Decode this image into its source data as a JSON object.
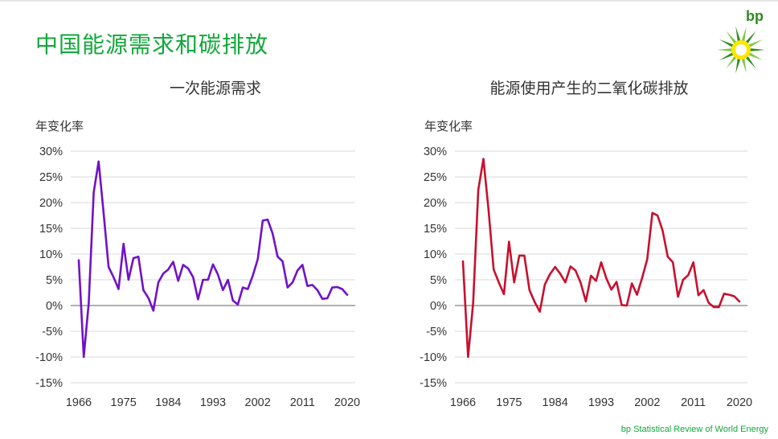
{
  "page": {
    "title": "中国能源需求和碳排放",
    "logo_text": "bp",
    "footer": "bp Statistical Review of World Energy"
  },
  "colors": {
    "title": "#12a83a",
    "series_energy": "#7012c8",
    "series_co2": "#c8102e",
    "logo_green": "#2e8b1e",
    "logo_yellow": "#ffe600"
  },
  "chart_data": [
    {
      "type": "line",
      "title": "一次能源需求",
      "ylabel": "年变化率",
      "xlabel": "",
      "ylim": [
        -15,
        30
      ],
      "xlim": [
        1966,
        2020
      ],
      "yticks": [
        "30%",
        "25%",
        "20%",
        "15%",
        "10%",
        "5%",
        "0%",
        "-5%",
        "-10%",
        "-15%"
      ],
      "xticks": [
        "1966",
        "1975",
        "1984",
        "1993",
        "2002",
        "2011",
        "2020"
      ],
      "grid": true,
      "series": [
        {
          "color": "#7012c8",
          "x": [
            1966,
            1967,
            1968,
            1969,
            1970,
            1971,
            1972,
            1973,
            1974,
            1975,
            1976,
            1977,
            1978,
            1979,
            1980,
            1981,
            1982,
            1983,
            1984,
            1985,
            1986,
            1987,
            1988,
            1989,
            1990,
            1991,
            1992,
            1993,
            1994,
            1995,
            1996,
            1997,
            1998,
            1999,
            2000,
            2001,
            2002,
            2003,
            2004,
            2005,
            2006,
            2007,
            2008,
            2009,
            2010,
            2011,
            2012,
            2013,
            2014,
            2015,
            2016,
            2017,
            2018,
            2019,
            2020
          ],
          "values": [
            8.8,
            -10,
            0.5,
            22,
            28,
            18,
            7.5,
            5.5,
            3.2,
            12,
            5,
            9.2,
            9.5,
            3,
            1.5,
            -1,
            4.5,
            6.2,
            7,
            8.5,
            4.8,
            7.9,
            7.2,
            5.5,
            1.2,
            5,
            5,
            8,
            6,
            3,
            5,
            1,
            0.2,
            3.5,
            3.2,
            5.8,
            9,
            16.5,
            16.7,
            14,
            9.5,
            8.6,
            3.5,
            4.5,
            6.8,
            7.9,
            3.8,
            4,
            3,
            1.3,
            1.4,
            3.5,
            3.6,
            3.2,
            2.1
          ]
        }
      ]
    },
    {
      "type": "line",
      "title": "能源使用产生的二氧化碳排放",
      "ylabel": "年变化率",
      "xlabel": "",
      "ylim": [
        -15,
        30
      ],
      "xlim": [
        1966,
        2020
      ],
      "yticks": [
        "30%",
        "25%",
        "20%",
        "15%",
        "10%",
        "5%",
        "0%",
        "-5%",
        "-10%",
        "-15%"
      ],
      "xticks": [
        "1966",
        "1975",
        "1984",
        "1993",
        "2002",
        "2011",
        "2020"
      ],
      "grid": true,
      "series": [
        {
          "color": "#c8102e",
          "x": [
            1966,
            1967,
            1968,
            1969,
            1970,
            1971,
            1972,
            1973,
            1974,
            1975,
            1976,
            1977,
            1978,
            1979,
            1980,
            1981,
            1982,
            1983,
            1984,
            1985,
            1986,
            1987,
            1988,
            1989,
            1990,
            1991,
            1992,
            1993,
            1994,
            1995,
            1996,
            1997,
            1998,
            1999,
            2000,
            2001,
            2002,
            2003,
            2004,
            2005,
            2006,
            2007,
            2008,
            2009,
            2010,
            2011,
            2012,
            2013,
            2014,
            2015,
            2016,
            2017,
            2018,
            2019,
            2020
          ],
          "values": [
            8.6,
            -10,
            0.5,
            22.5,
            28.5,
            18.5,
            7,
            4.5,
            2.2,
            12.4,
            4.5,
            9.7,
            9.7,
            3,
            0.7,
            -1.2,
            4.1,
            6.1,
            7.5,
            6.2,
            4.5,
            7.6,
            6.8,
            4.4,
            0.8,
            5.8,
            4.8,
            8.4,
            5.3,
            3.1,
            4.6,
            0.1,
            0,
            4.3,
            2.1,
            5.4,
            9,
            18,
            17.5,
            14.6,
            9.5,
            8.4,
            1.7,
            5,
            5.9,
            8.4,
            2,
            3,
            0.5,
            -0.3,
            -0.3,
            2.3,
            2.1,
            1.8,
            0.8
          ]
        }
      ]
    }
  ]
}
